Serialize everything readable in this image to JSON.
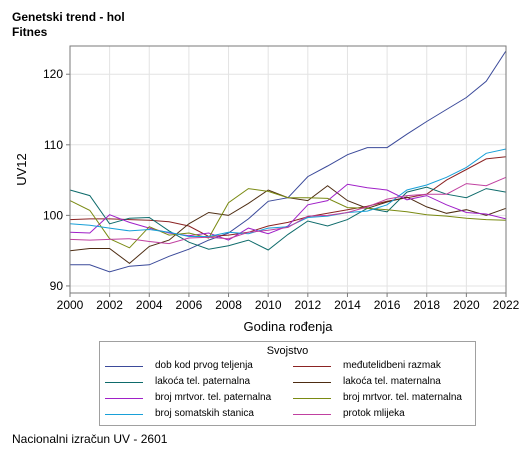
{
  "header": {
    "title_line1": "Genetski trend - hol",
    "title_line2": "Fitnes"
  },
  "footer": "Nacionalni izračun UV - 2601",
  "chart_data": {
    "type": "line",
    "xlabel": "Godina rođenja",
    "ylabel": "UV12",
    "xlim": [
      2000,
      2022
    ],
    "ylim": [
      89,
      124
    ],
    "xticks": [
      2000,
      2002,
      2004,
      2006,
      2008,
      2010,
      2012,
      2014,
      2016,
      2018,
      2020,
      2022
    ],
    "yticks": [
      90,
      100,
      110,
      120
    ],
    "grid": true,
    "legend_title": "Svojstvo",
    "legend_position": "bottom",
    "x": [
      2000,
      2001,
      2002,
      2003,
      2004,
      2005,
      2006,
      2007,
      2008,
      2009,
      2010,
      2011,
      2012,
      2013,
      2014,
      2015,
      2016,
      2017,
      2018,
      2019,
      2020,
      2021,
      2022
    ],
    "series": [
      {
        "name": "dob kod prvog teljenja",
        "color": "#3b4a9a",
        "values": [
          93.0,
          93.0,
          92.0,
          92.8,
          93.0,
          94.2,
          95.2,
          96.5,
          97.5,
          99.5,
          102.0,
          102.5,
          105.5,
          107.0,
          108.6,
          109.6,
          109.6,
          111.5,
          113.3,
          115.0,
          116.7,
          119.0,
          123.3
        ]
      },
      {
        "name": "međutelidbeni razmak",
        "color": "#8b2323",
        "values": [
          99.4,
          99.5,
          99.5,
          99.4,
          99.3,
          99.1,
          98.5,
          97.0,
          97.2,
          97.6,
          98.5,
          99.0,
          99.8,
          100.3,
          100.8,
          101.3,
          102.0,
          102.5,
          103.0,
          105.0,
          106.5,
          108.0,
          108.3
        ]
      },
      {
        "name": "lakoća tel. paternalna",
        "color": "#0e6b6b",
        "values": [
          103.6,
          102.8,
          98.8,
          99.6,
          99.7,
          97.8,
          96.2,
          95.2,
          95.7,
          96.5,
          95.1,
          97.3,
          99.2,
          98.5,
          99.4,
          101.0,
          100.5,
          103.3,
          104.0,
          103.0,
          102.5,
          103.8,
          103.3
        ]
      },
      {
        "name": "lakoća tel. maternalna",
        "color": "#4d2c12",
        "values": [
          95.0,
          95.3,
          95.3,
          93.2,
          95.6,
          96.5,
          98.8,
          100.4,
          100.0,
          101.7,
          103.6,
          102.5,
          102.1,
          104.2,
          102.1,
          101.0,
          101.9,
          102.6,
          101.2,
          100.3,
          100.8,
          100.0,
          101.0
        ]
      },
      {
        "name": "broj mrtvor. tel. paternalna",
        "color": "#a020c8",
        "values": [
          97.6,
          97.5,
          100.1,
          99.0,
          98.2,
          97.5,
          97.1,
          97.5,
          96.5,
          98.2,
          97.4,
          98.5,
          101.5,
          102.1,
          104.4,
          103.9,
          103.6,
          102.2,
          102.8,
          101.5,
          100.4,
          100.2,
          99.5
        ]
      },
      {
        "name": "broj mrtvor. tel. maternalna",
        "color": "#7a8a12",
        "values": [
          102.1,
          100.7,
          96.7,
          95.4,
          98.4,
          97.2,
          97.5,
          96.8,
          101.8,
          103.8,
          103.4,
          102.5,
          102.5,
          102.4,
          101.1,
          101.0,
          100.8,
          100.5,
          100.1,
          99.9,
          99.6,
          99.4,
          99.3
        ]
      },
      {
        "name": "broj somatskih stanica",
        "color": "#18a0d8",
        "values": [
          98.8,
          98.6,
          98.2,
          97.8,
          98.0,
          97.6,
          97.0,
          97.0,
          97.6,
          97.4,
          98.2,
          98.4,
          99.7,
          99.9,
          100.4,
          100.6,
          101.5,
          103.6,
          104.3,
          105.4,
          106.8,
          108.8,
          109.4
        ]
      },
      {
        "name": "protok mlijeka",
        "color": "#c040a0",
        "values": [
          96.6,
          96.5,
          96.6,
          96.7,
          96.3,
          96.0,
          96.8,
          96.9,
          96.7,
          97.6,
          97.9,
          98.3,
          99.9,
          100.0,
          100.4,
          101.2,
          102.3,
          102.8,
          103.0,
          103.0,
          104.5,
          104.2,
          105.4
        ]
      }
    ]
  }
}
